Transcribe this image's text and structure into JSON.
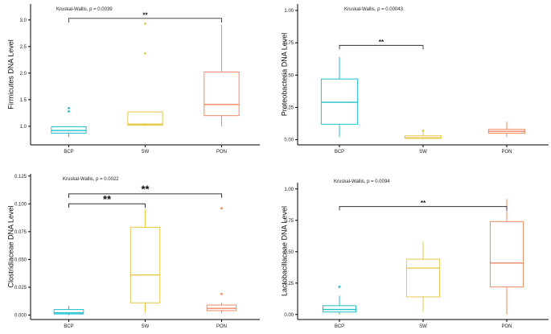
{
  "colors": {
    "BCP": "#20c1cc",
    "SW": "#e6c84a",
    "PON": "#f08a62",
    "axis": "#000000",
    "bracket": "#333333"
  },
  "chart_data": [
    {
      "type": "box",
      "ylabel": "Firmicutes DNA Level",
      "annotation": "Kruskal-Wallis, p = 0.0039",
      "ylim": [
        0.65,
        3.3
      ],
      "yticks": [
        "1.0",
        "1.5",
        "2.0",
        "2.5",
        "3.0"
      ],
      "categories": [
        "BCP",
        "SW",
        "PON"
      ],
      "boxes": [
        {
          "category": "BCP",
          "whisker_low": 0.8,
          "q1": 0.87,
          "median": 0.92,
          "q3": 0.99,
          "whisker_high": 1.0,
          "outliers": [
            1.28,
            1.34
          ]
        },
        {
          "category": "SW",
          "whisker_low": 1.0,
          "q1": 1.02,
          "median": 1.04,
          "q3": 1.27,
          "whisker_high": 1.27,
          "outliers": [
            2.37,
            2.93
          ]
        },
        {
          "category": "PON",
          "whisker_low": 1.0,
          "q1": 1.2,
          "median": 1.41,
          "q3": 2.02,
          "whisker_high": 2.91,
          "outliers": []
        }
      ],
      "brackets": [
        {
          "from": "BCP",
          "to": "PON",
          "label": "**",
          "y": 3.03,
          "size": "small"
        }
      ]
    },
    {
      "type": "box",
      "ylabel": "Proteobacteria DNA Level",
      "annotation": "Kruskal-Wallis, p = 0.00043",
      "ylim": [
        -0.04,
        1.05
      ],
      "yticks": [
        "0.00",
        "0.25",
        "0.50",
        "0.75",
        "1.00"
      ],
      "categories": [
        "BCP",
        "SW",
        "PON"
      ],
      "boxes": [
        {
          "category": "BCP",
          "whisker_low": 0.02,
          "q1": 0.12,
          "median": 0.29,
          "q3": 0.47,
          "whisker_high": 0.64,
          "outliers": []
        },
        {
          "category": "SW",
          "whisker_low": 0.0,
          "q1": 0.01,
          "median": 0.015,
          "q3": 0.03,
          "whisker_high": 0.07,
          "outliers": [
            0.07
          ]
        },
        {
          "category": "PON",
          "whisker_low": 0.02,
          "q1": 0.05,
          "median": 0.065,
          "q3": 0.08,
          "whisker_high": 0.14,
          "outliers": []
        }
      ],
      "brackets": [
        {
          "from": "BCP",
          "to": "SW",
          "label": "**",
          "y": 0.73,
          "size": "small"
        }
      ]
    },
    {
      "type": "box",
      "ylabel": "Clostridiaceae DNA Level",
      "annotation": "Kruskal-Wallis, p = 0.0022",
      "ylim": [
        -0.004,
        0.127
      ],
      "yticks": [
        "0.000",
        "0.025",
        "0.050",
        "0.075",
        "0.100",
        "0.125"
      ],
      "categories": [
        "BCP",
        "SW",
        "PON"
      ],
      "boxes": [
        {
          "category": "BCP",
          "whisker_low": 0.0,
          "q1": 0.001,
          "median": 0.002,
          "q3": 0.005,
          "whisker_high": 0.008,
          "outliers": []
        },
        {
          "category": "SW",
          "whisker_low": 0.002,
          "q1": 0.011,
          "median": 0.036,
          "q3": 0.079,
          "whisker_high": 0.095,
          "outliers": []
        },
        {
          "category": "PON",
          "whisker_low": 0.002,
          "q1": 0.004,
          "median": 0.006,
          "q3": 0.009,
          "whisker_high": 0.011,
          "outliers": [
            0.019,
            0.096
          ]
        }
      ],
      "brackets": [
        {
          "from": "BCP",
          "to": "SW",
          "label": "**",
          "y": 0.1,
          "size": "large"
        },
        {
          "from": "BCP",
          "to": "PON",
          "label": "**",
          "y": 0.109,
          "size": "large"
        }
      ]
    },
    {
      "type": "box",
      "ylabel": "Lactobacillaceae DNA Level",
      "annotation": "Kruskal-Wallis, p = 0.0094",
      "ylim": [
        -0.04,
        1.05
      ],
      "yticks": [
        "0.00",
        "0.25",
        "0.50",
        "0.75",
        "1.00"
      ],
      "categories": [
        "BCP",
        "SW",
        "PON"
      ],
      "boxes": [
        {
          "category": "BCP",
          "whisker_low": 0.0,
          "q1": 0.02,
          "median": 0.04,
          "q3": 0.07,
          "whisker_high": 0.15,
          "outliers": [
            0.22
          ]
        },
        {
          "category": "SW",
          "whisker_low": 0.02,
          "q1": 0.14,
          "median": 0.37,
          "q3": 0.44,
          "whisker_high": 0.58,
          "outliers": []
        },
        {
          "category": "PON",
          "whisker_low": 0.0,
          "q1": 0.22,
          "median": 0.41,
          "q3": 0.74,
          "whisker_high": 0.92,
          "outliers": []
        }
      ],
      "brackets": [
        {
          "from": "BCP",
          "to": "PON",
          "label": "**",
          "y": 0.86,
          "size": "small"
        }
      ]
    }
  ]
}
